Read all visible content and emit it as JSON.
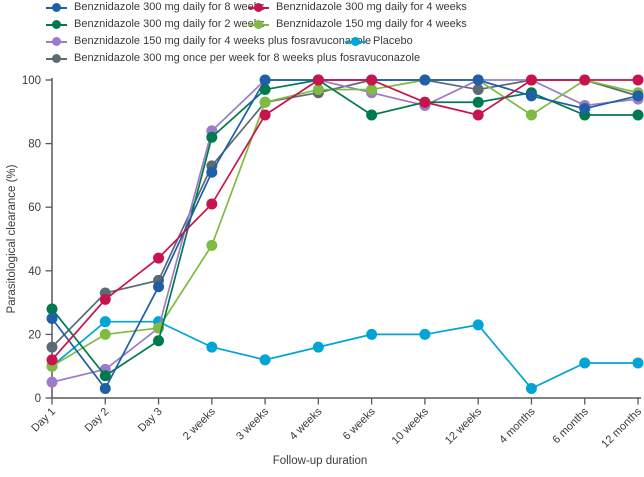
{
  "chart_data": {
    "type": "line",
    "title": "",
    "xlabel": "Follow-up duration",
    "ylabel": "Parasitological clearance (%)",
    "ylim": [
      0,
      100
    ],
    "yticks": [
      0,
      20,
      40,
      60,
      80,
      100
    ],
    "grid": false,
    "legend_position": "top",
    "categories": [
      "Day 1",
      "Day 2",
      "Day 3",
      "2 weeks",
      "3 weeks",
      "4 weeks",
      "6 weeks",
      "10 weeks",
      "12 weeks",
      "4 months",
      "6 months",
      "12 months"
    ],
    "series": [
      {
        "name": "Benznidazole 300 mg daily for 8 weeks",
        "color": "#1f5fa8",
        "values": [
          25,
          3,
          35,
          71,
          100,
          100,
          100,
          100,
          100,
          95,
          91,
          95
        ]
      },
      {
        "name": "Benznidazole 300 mg daily for 4 weeks",
        "color": "#c8144c",
        "values": [
          12,
          31,
          44,
          61,
          89,
          100,
          100,
          93,
          89,
          100,
          100,
          100
        ]
      },
      {
        "name": "Benznidazole 300 mg daily for 2 weeks",
        "color": "#007a4d",
        "values": [
          28,
          7,
          18,
          82,
          97,
          100,
          89,
          93,
          93,
          96,
          89,
          89
        ]
      },
      {
        "name": "Benznidazole 150 mg daily for 4 weeks",
        "color": "#7fba42",
        "values": [
          10,
          20,
          22,
          48,
          93,
          97,
          97,
          100,
          100,
          89,
          100,
          96
        ]
      },
      {
        "name": "Benznidazole 150 mg daily for 4 weeks plus fosravuconazole",
        "color": "#9c7bc8",
        "values": [
          5,
          9,
          22,
          84,
          100,
          100,
          96,
          92,
          100,
          100,
          92,
          94
        ]
      },
      {
        "name": "Placebo",
        "color": "#00a5d5",
        "values": [
          10,
          24,
          24,
          16,
          12,
          16,
          20,
          20,
          23,
          3,
          11,
          11
        ]
      },
      {
        "name": "Benznidazole 300 mg once per week for 8 weeks plus fosravuconazole",
        "color": "#5c6a72",
        "values": [
          16,
          33,
          37,
          73,
          93,
          96,
          100,
          100,
          97,
          100,
          100,
          95
        ]
      }
    ],
    "axis_color": "#58595b",
    "text_color": "#3b3b3b"
  }
}
